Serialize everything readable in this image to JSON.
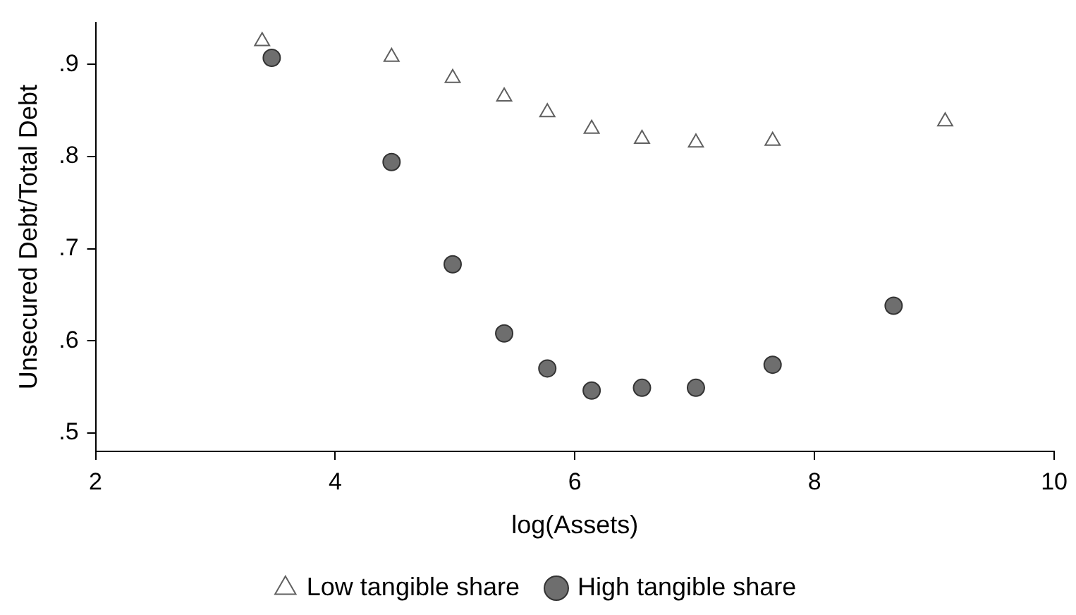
{
  "chart_data": {
    "type": "scatter",
    "xlabel": "log(Assets)",
    "ylabel": "Unsecured Debt/Total Debt",
    "xlim": [
      2,
      10
    ],
    "xticks": [
      2,
      4,
      6,
      8,
      10
    ],
    "ylim": [
      0.48,
      0.945
    ],
    "yticks": [
      {
        "value": 0.5,
        "label": ".5"
      },
      {
        "value": 0.6,
        "label": ".6"
      },
      {
        "value": 0.7,
        "label": ".7"
      },
      {
        "value": 0.8,
        "label": ".8"
      },
      {
        "value": 0.9,
        "label": ".9"
      }
    ],
    "grid": false,
    "legend": "bottom",
    "series": [
      {
        "name": "Low tangible share",
        "color": "#606060",
        "marker": "triangle",
        "x": [
          3.39,
          4.47,
          4.98,
          5.41,
          5.77,
          6.14,
          6.56,
          7.01,
          7.65,
          9.09
        ],
        "values": [
          0.925,
          0.908,
          0.885,
          0.865,
          0.848,
          0.83,
          0.819,
          0.815,
          0.817,
          0.838
        ]
      },
      {
        "name": "High tangible share",
        "color": "#6e6e6e",
        "marker": "circle",
        "x": [
          3.47,
          4.47,
          4.98,
          5.41,
          5.77,
          6.14,
          6.56,
          7.01,
          7.65,
          8.66
        ],
        "values": [
          0.907,
          0.794,
          0.683,
          0.608,
          0.57,
          0.546,
          0.549,
          0.549,
          0.574,
          0.638
        ]
      }
    ]
  }
}
